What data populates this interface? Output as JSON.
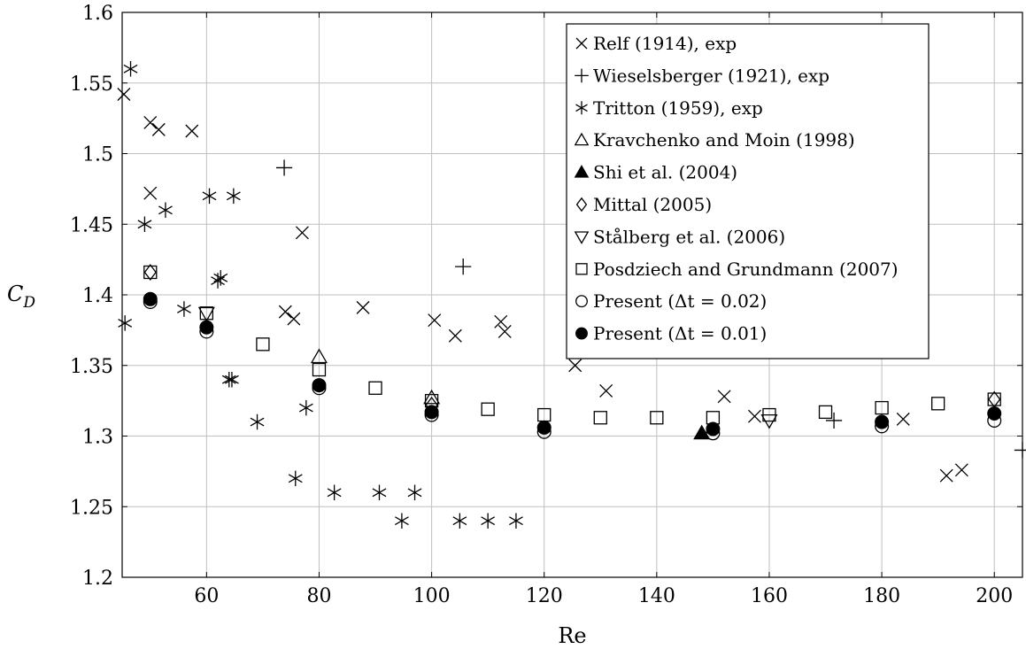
{
  "chart_data": {
    "type": "scatter",
    "title": "",
    "xlabel": "Re",
    "ylabel_base": "C",
    "ylabel_sub": "D",
    "xlim": [
      45,
      205
    ],
    "ylim": [
      1.2,
      1.6
    ],
    "grid": true,
    "legend_position": "top-right",
    "xticks": [
      {
        "v": 60,
        "label": "60"
      },
      {
        "v": 80,
        "label": "80"
      },
      {
        "v": 100,
        "label": "100"
      },
      {
        "v": 120,
        "label": "120"
      },
      {
        "v": 140,
        "label": "140"
      },
      {
        "v": 160,
        "label": "160"
      },
      {
        "v": 180,
        "label": "180"
      },
      {
        "v": 200,
        "label": "200"
      }
    ],
    "yticks": [
      {
        "v": 1.2,
        "label": "1.2"
      },
      {
        "v": 1.25,
        "label": "1.25"
      },
      {
        "v": 1.3,
        "label": "1.3"
      },
      {
        "v": 1.35,
        "label": "1.35"
      },
      {
        "v": 1.4,
        "label": "1.4"
      },
      {
        "v": 1.45,
        "label": "1.45"
      },
      {
        "v": 1.5,
        "label": "1.5"
      },
      {
        "v": 1.55,
        "label": "1.55"
      },
      {
        "v": 1.6,
        "label": "1.6"
      }
    ],
    "series": [
      {
        "name": "Relf (1914), exp",
        "marker": "cross",
        "points": [
          [
            45.3,
            1.542
          ],
          [
            50,
            1.522
          ],
          [
            51.5,
            1.517
          ],
          [
            57.4,
            1.516
          ],
          [
            50,
            1.472
          ],
          [
            77,
            1.444
          ],
          [
            74,
            1.388
          ],
          [
            75.5,
            1.383
          ],
          [
            87.8,
            1.391
          ],
          [
            100.5,
            1.382
          ],
          [
            104.2,
            1.371
          ],
          [
            112.3,
            1.381
          ],
          [
            113,
            1.374
          ],
          [
            125.5,
            1.35
          ],
          [
            131,
            1.332
          ],
          [
            152,
            1.328
          ],
          [
            157.4,
            1.314
          ],
          [
            183.8,
            1.312
          ],
          [
            191.5,
            1.272
          ],
          [
            194.2,
            1.276
          ]
        ]
      },
      {
        "name": "Wieselsberger (1921), exp",
        "marker": "plus",
        "points": [
          [
            73.8,
            1.49
          ],
          [
            105.6,
            1.42
          ],
          [
            171.5,
            1.311
          ],
          [
            205,
            1.29
          ]
        ]
      },
      {
        "name": "Tritton (1959), exp",
        "marker": "asterisk",
        "points": [
          [
            46.5,
            1.56
          ],
          [
            49,
            1.45
          ],
          [
            52.7,
            1.46
          ],
          [
            45.5,
            1.38
          ],
          [
            56,
            1.39
          ],
          [
            60.5,
            1.47
          ],
          [
            64.8,
            1.47
          ],
          [
            62,
            1.41
          ],
          [
            62.5,
            1.412
          ],
          [
            64,
            1.34
          ],
          [
            64.5,
            1.34
          ],
          [
            69,
            1.31
          ],
          [
            75.8,
            1.27
          ],
          [
            77.7,
            1.32
          ],
          [
            82.7,
            1.26
          ],
          [
            90.7,
            1.26
          ],
          [
            94.7,
            1.24
          ],
          [
            97,
            1.26
          ],
          [
            105,
            1.24
          ],
          [
            110,
            1.24
          ],
          [
            115,
            1.24
          ]
        ]
      },
      {
        "name": "Kravchenko and Moin (1998)",
        "marker": "triangle-up-open",
        "points": [
          [
            80,
            1.356
          ],
          [
            100,
            1.327
          ]
        ]
      },
      {
        "name": "Shi et al. (2004)",
        "marker": "triangle-up-filled",
        "points": [
          [
            148,
            1.302
          ]
        ]
      },
      {
        "name": "Mittal (2005)",
        "marker": "diamond-open",
        "points": [
          [
            50,
            1.416
          ],
          [
            100,
            1.322
          ],
          [
            200,
            1.326
          ]
        ]
      },
      {
        "name": "Stålberg et al. (2006)",
        "marker": "triangle-down-open",
        "points": [
          [
            60,
            1.387
          ],
          [
            160,
            1.311
          ]
        ]
      },
      {
        "name": "Posdziech and Grundmann (2007)",
        "marker": "square-open",
        "points": [
          [
            50,
            1.416
          ],
          [
            60,
            1.387
          ],
          [
            70,
            1.365
          ],
          [
            80,
            1.347
          ],
          [
            90,
            1.334
          ],
          [
            100,
            1.325
          ],
          [
            110,
            1.319
          ],
          [
            120,
            1.315
          ],
          [
            130,
            1.313
          ],
          [
            140,
            1.313
          ],
          [
            150,
            1.313
          ],
          [
            160,
            1.315
          ],
          [
            170,
            1.317
          ],
          [
            180,
            1.32
          ],
          [
            190,
            1.323
          ],
          [
            200,
            1.326
          ]
        ]
      },
      {
        "name": "Present (Δt = 0.02)",
        "marker": "circle-open",
        "points": [
          [
            50,
            1.395
          ],
          [
            60,
            1.374
          ],
          [
            80,
            1.334
          ],
          [
            100,
            1.315
          ],
          [
            120,
            1.303
          ],
          [
            150,
            1.302
          ],
          [
            180,
            1.307
          ],
          [
            200,
            1.311
          ]
        ]
      },
      {
        "name": "Present (Δt = 0.01)",
        "marker": "circle-filled",
        "points": [
          [
            50,
            1.397
          ],
          [
            60,
            1.377
          ],
          [
            80,
            1.336
          ],
          [
            100,
            1.317
          ],
          [
            120,
            1.306
          ],
          [
            150,
            1.305
          ],
          [
            180,
            1.31
          ],
          [
            200,
            1.316
          ]
        ]
      }
    ]
  }
}
